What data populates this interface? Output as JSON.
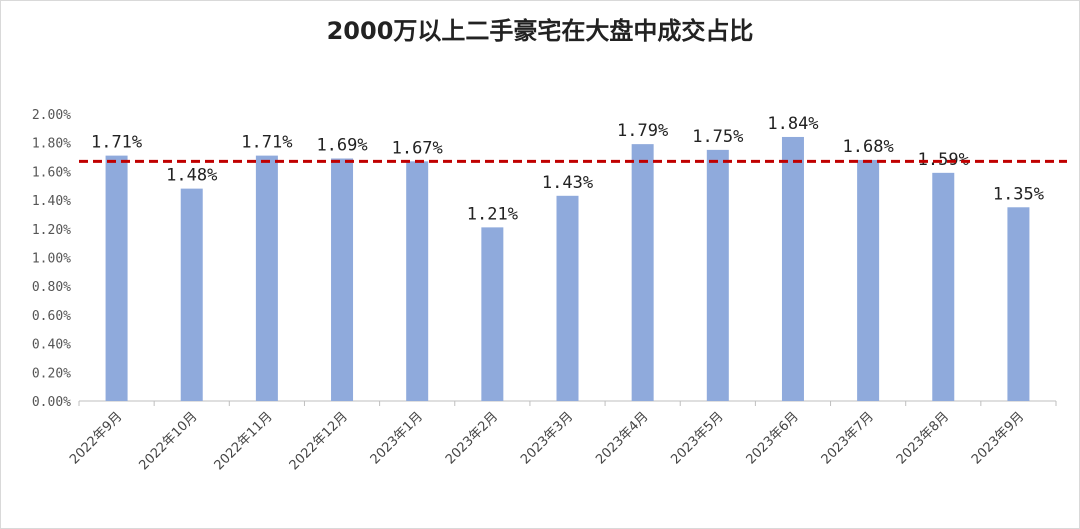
{
  "chart_data": {
    "type": "bar",
    "title": "2000万以上二手豪宅在大盘中成交占比",
    "categories": [
      "2022年9月",
      "2022年10月",
      "2022年11月",
      "2022年12月",
      "2023年1月",
      "2023年2月",
      "2023年3月",
      "2023年4月",
      "2023年5月",
      "2023年6月",
      "2023年7月",
      "2023年8月",
      "2023年9月"
    ],
    "values": [
      1.71,
      1.48,
      1.71,
      1.69,
      1.67,
      1.21,
      1.43,
      1.79,
      1.75,
      1.84,
      1.68,
      1.59,
      1.35
    ],
    "data_labels": [
      "1.71%",
      "1.48%",
      "1.71%",
      "1.69%",
      "1.67%",
      "1.21%",
      "1.43%",
      "1.79%",
      "1.75%",
      "1.84%",
      "1.68%",
      "1.59%",
      "1.35%"
    ],
    "ytick_labels": [
      "0.00%",
      "0.20%",
      "0.40%",
      "0.60%",
      "0.80%",
      "1.00%",
      "1.20%",
      "1.40%",
      "1.60%",
      "1.80%",
      "2.00%"
    ],
    "ylim": [
      0,
      2.0
    ],
    "reference_line": {
      "value": 1.67,
      "style": "dashed",
      "color": "#c00000"
    },
    "bar_color": "#8faadc",
    "grid": false,
    "legend": "none",
    "xlabel": "",
    "ylabel": ""
  }
}
